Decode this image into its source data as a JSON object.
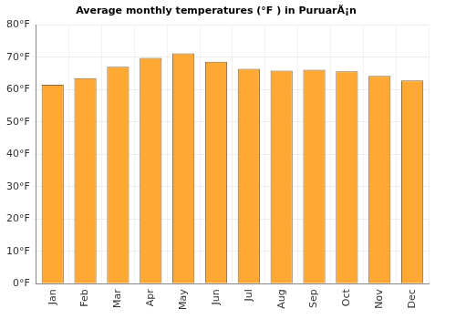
{
  "chart_data": {
    "type": "bar",
    "title": "Average monthly temperatures (°F ) in PuruarÃ¡n",
    "categories": [
      "Jan",
      "Feb",
      "Mar",
      "Apr",
      "May",
      "Jun",
      "Jul",
      "Aug",
      "Sep",
      "Oct",
      "Nov",
      "Dec"
    ],
    "values": [
      61.5,
      63.5,
      67,
      69.8,
      71.2,
      68.6,
      66.4,
      65.8,
      66.1,
      65.6,
      64.2,
      62.8
    ],
    "color": "#ffa833",
    "ylim": [
      0,
      80
    ],
    "yticks": [
      {
        "value": 0,
        "label": "0°F"
      },
      {
        "value": 10,
        "label": "10°F"
      },
      {
        "value": 20,
        "label": "20°F"
      },
      {
        "value": 30,
        "label": "30°F"
      },
      {
        "value": 40,
        "label": "40°F"
      },
      {
        "value": 50,
        "label": "50°F"
      },
      {
        "value": 60,
        "label": "60°F"
      },
      {
        "value": 70,
        "label": "70°F"
      },
      {
        "value": 80,
        "label": "80°F"
      }
    ],
    "grid": true
  }
}
